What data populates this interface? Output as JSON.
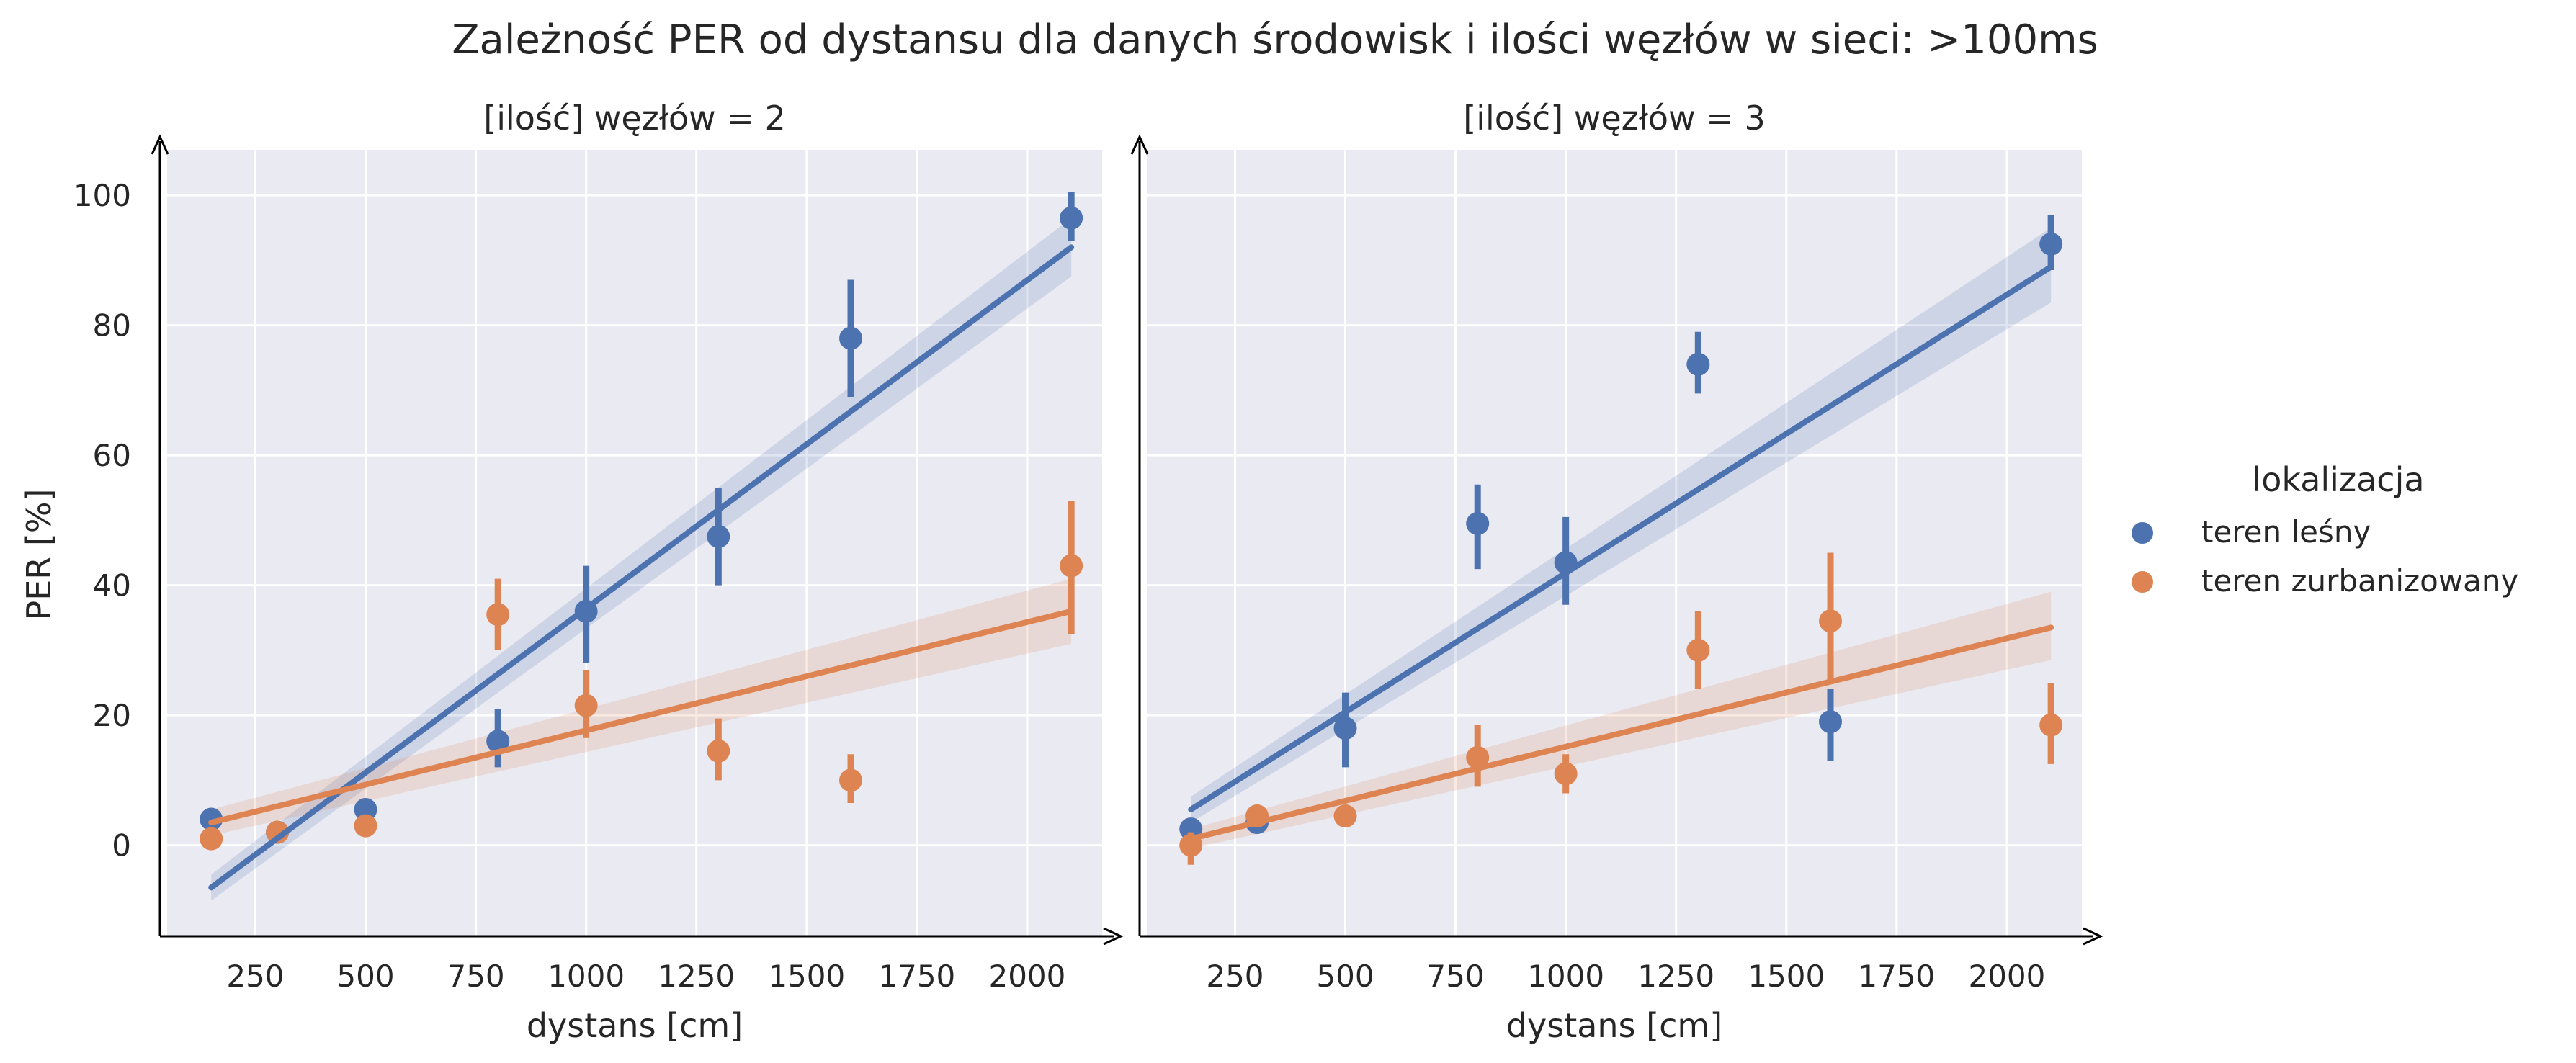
{
  "chart_data": {
    "type": "scatter",
    "title": "Zależność PER od dystansu dla danych środowisk i ilości węzłów w sieci: >100ms",
    "ylabel": "PER [%]",
    "xlabel": "dystans [cm]",
    "xlim": [
      50,
      2170
    ],
    "ylim": [
      -14,
      107
    ],
    "x_ticks": [
      250,
      500,
      750,
      1000,
      1250,
      1500,
      1750,
      2000
    ],
    "y_ticks": [
      0,
      20,
      40,
      60,
      80,
      100
    ],
    "grid": true,
    "legend": {
      "title": "lokalizacja",
      "placement": "right",
      "entries": [
        {
          "label": "teren leśny",
          "color": "#4c72b0"
        },
        {
          "label": "teren zurbanizowany",
          "color": "#dd8452"
        }
      ]
    },
    "panels": [
      {
        "title": "[ilość] węzłów = 2",
        "series": [
          {
            "name": "teren leśny",
            "color": "#4c72b0",
            "points": [
              {
                "x": 150,
                "y": 4,
                "lo": 4,
                "hi": 4
              },
              {
                "x": 300,
                "y": 2,
                "lo": 2,
                "hi": 2
              },
              {
                "x": 500,
                "y": 5.5,
                "lo": 4,
                "hi": 7
              },
              {
                "x": 800,
                "y": 16,
                "lo": 12,
                "hi": 21
              },
              {
                "x": 1000,
                "y": 36,
                "lo": 28,
                "hi": 43
              },
              {
                "x": 1300,
                "y": 47.5,
                "lo": 40,
                "hi": 55
              },
              {
                "x": 1600,
                "y": 78,
                "lo": 69,
                "hi": 87
              },
              {
                "x": 2100,
                "y": 96.5,
                "lo": 93,
                "hi": 100.5
              }
            ],
            "fit": {
              "x0": 150,
              "y0": -6.5,
              "x1": 2100,
              "y1": 92
            },
            "band": {
              "lo0": -8.5,
              "hi0": -4.5,
              "lo1": 87.5,
              "hi1": 96.5
            }
          },
          {
            "name": "teren zurbanizowany",
            "color": "#dd8452",
            "points": [
              {
                "x": 150,
                "y": 1,
                "lo": 1,
                "hi": 1
              },
              {
                "x": 300,
                "y": 2,
                "lo": 2,
                "hi": 2
              },
              {
                "x": 500,
                "y": 3,
                "lo": 3,
                "hi": 3
              },
              {
                "x": 800,
                "y": 35.5,
                "lo": 30,
                "hi": 41
              },
              {
                "x": 1000,
                "y": 21.5,
                "lo": 16.5,
                "hi": 27
              },
              {
                "x": 1300,
                "y": 14.5,
                "lo": 10,
                "hi": 19.5
              },
              {
                "x": 1600,
                "y": 10,
                "lo": 6.5,
                "hi": 14
              },
              {
                "x": 2100,
                "y": 43,
                "lo": 32.5,
                "hi": 53
              }
            ],
            "fit": {
              "x0": 150,
              "y0": 3.5,
              "x1": 2100,
              "y1": 36
            },
            "band": {
              "lo0": 1.5,
              "hi0": 5.5,
              "lo1": 31,
              "hi1": 41
            }
          }
        ]
      },
      {
        "title": "[ilość] węzłów = 3",
        "series": [
          {
            "name": "teren leśny",
            "color": "#4c72b0",
            "points": [
              {
                "x": 150,
                "y": 2.5,
                "lo": 2.5,
                "hi": 2.5
              },
              {
                "x": 300,
                "y": 3.5,
                "lo": 3.5,
                "hi": 3.5
              },
              {
                "x": 500,
                "y": 18,
                "lo": 12,
                "hi": 23.5
              },
              {
                "x": 800,
                "y": 49.5,
                "lo": 42.5,
                "hi": 55.5
              },
              {
                "x": 1000,
                "y": 43.5,
                "lo": 37,
                "hi": 50.5
              },
              {
                "x": 1300,
                "y": 74,
                "lo": 69.5,
                "hi": 79
              },
              {
                "x": 1600,
                "y": 19,
                "lo": 13,
                "hi": 24
              },
              {
                "x": 2100,
                "y": 92.5,
                "lo": 88.5,
                "hi": 97
              }
            ],
            "fit": {
              "x0": 150,
              "y0": 5.5,
              "x1": 2100,
              "y1": 89
            },
            "band": {
              "lo0": 3.5,
              "hi0": 7.5,
              "lo1": 83.5,
              "hi1": 95
            }
          },
          {
            "name": "teren zurbanizowany",
            "color": "#dd8452",
            "points": [
              {
                "x": 150,
                "y": 0,
                "lo": -3,
                "hi": 2
              },
              {
                "x": 300,
                "y": 4.5,
                "lo": 4.5,
                "hi": 4.5
              },
              {
                "x": 500,
                "y": 4.5,
                "lo": 4.5,
                "hi": 4.5
              },
              {
                "x": 800,
                "y": 13.5,
                "lo": 9,
                "hi": 18.5
              },
              {
                "x": 1000,
                "y": 11,
                "lo": 8,
                "hi": 14
              },
              {
                "x": 1300,
                "y": 30,
                "lo": 24,
                "hi": 36
              },
              {
                "x": 1600,
                "y": 34.5,
                "lo": 25,
                "hi": 45
              },
              {
                "x": 2100,
                "y": 18.5,
                "lo": 12.5,
                "hi": 25
              }
            ],
            "fit": {
              "x0": 150,
              "y0": 1,
              "x1": 2100,
              "y1": 33.5
            },
            "band": {
              "lo0": -0.5,
              "hi0": 2.5,
              "lo1": 28.5,
              "hi1": 39
            }
          }
        ]
      }
    ]
  }
}
